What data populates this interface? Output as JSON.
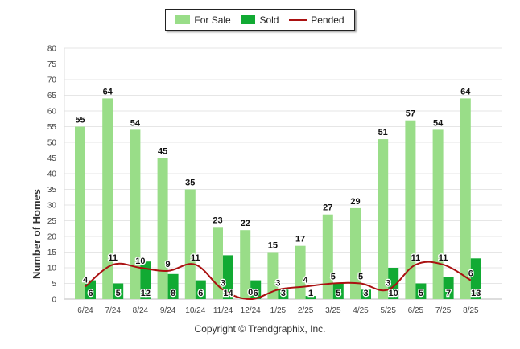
{
  "chart_data": {
    "type": "bar",
    "categories": [
      "6/24",
      "7/24",
      "8/24",
      "9/24",
      "10/24",
      "11/24",
      "12/24",
      "1/25",
      "2/25",
      "3/25",
      "4/25",
      "5/25",
      "6/25",
      "7/25",
      "8/25"
    ],
    "series": [
      {
        "name": "For Sale",
        "type": "bar",
        "color": "#99dd88",
        "values": [
          55,
          64,
          54,
          45,
          35,
          23,
          22,
          15,
          17,
          27,
          29,
          51,
          57,
          54,
          64
        ]
      },
      {
        "name": "Sold",
        "type": "bar",
        "color": "#11aa33",
        "values": [
          6,
          5,
          12,
          8,
          6,
          14,
          6,
          3,
          1,
          5,
          3,
          10,
          5,
          7,
          13
        ]
      },
      {
        "name": "Pended",
        "type": "line",
        "color": "#aa1111",
        "values": [
          4,
          11,
          10,
          9,
          11,
          3,
          0,
          3,
          4,
          5,
          5,
          3,
          11,
          11,
          6
        ]
      }
    ],
    "ylabel": "Number of Homes",
    "xlabel": "",
    "ylim": [
      0,
      80
    ],
    "yticks": [
      0,
      5,
      10,
      15,
      20,
      25,
      30,
      35,
      40,
      45,
      50,
      55,
      60,
      65,
      70,
      75,
      80
    ],
    "grid": true,
    "legend_position": "top-center"
  },
  "legend": {
    "items": [
      {
        "label": "For Sale",
        "color": "#99dd88"
      },
      {
        "label": "Sold",
        "color": "#11aa33"
      },
      {
        "label": "Pended",
        "color": "#aa1111"
      }
    ]
  },
  "footer": {
    "copyright": "Copyright © Trendgraphix, Inc."
  }
}
